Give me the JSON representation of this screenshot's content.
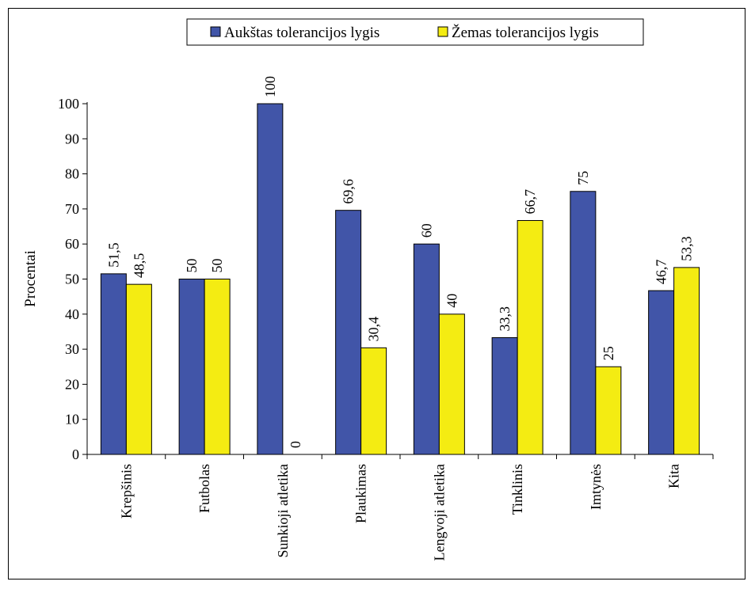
{
  "chart_data": {
    "type": "bar",
    "categories": [
      "Krepšinis",
      "Futbolas",
      "Sunkioji atletika",
      "Plaukimas",
      "Lengvoji atletika",
      "Tinklinis",
      "Imtynės",
      "Kita"
    ],
    "series": [
      {
        "name": "Aukštas tolerancijos lygis",
        "color": "#4155a8",
        "values": [
          51.5,
          50,
          100,
          69.6,
          60,
          33.3,
          75,
          46.7
        ],
        "labels": [
          "51,5",
          "50",
          "100",
          "69,6",
          "60",
          "33,3",
          "75",
          "46,7"
        ]
      },
      {
        "name": "Žemas tolerancijos lygis",
        "color": "#f4ec12",
        "values": [
          48.5,
          50,
          0,
          30.4,
          40,
          66.7,
          25,
          53.3
        ],
        "labels": [
          "48,5",
          "50",
          "0",
          "30,4",
          "40",
          "66,7",
          "25",
          "53,3"
        ]
      }
    ],
    "ylabel": "Procentai",
    "xlabel": "",
    "ylim": [
      0,
      100
    ],
    "yticks": [
      0,
      10,
      20,
      30,
      40,
      50,
      60,
      70,
      80,
      90,
      100
    ],
    "grid": false,
    "legend_position": "top"
  }
}
